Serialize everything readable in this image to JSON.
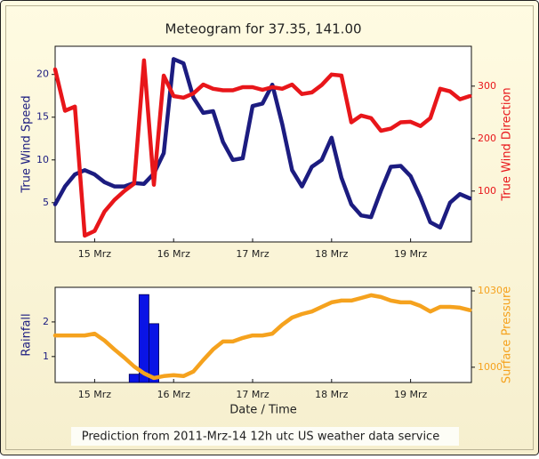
{
  "footer": "Prediction from 2011-Mrz-14 12h utc US weather data service",
  "chart_data": [
    {
      "type": "line",
      "title": "Meteogram for 37.35, 141.00",
      "ylabel": "True Wind Speed",
      "y2label": "True Wind Direction",
      "x": [
        14.5,
        14.625,
        14.75,
        14.875,
        15,
        15.125,
        15.25,
        15.375,
        15.5,
        15.625,
        15.75,
        15.875,
        16,
        16.125,
        16.25,
        16.375,
        16.5,
        16.625,
        16.75,
        16.875,
        17,
        17.125,
        17.25,
        17.375,
        17.5,
        17.625,
        17.75,
        17.875,
        18,
        18.125,
        18.25,
        18.375,
        18.5,
        18.625,
        18.75,
        18.875,
        19,
        19.125,
        19.25,
        19.375,
        19.5,
        19.625,
        19.75
      ],
      "xlim": [
        14.5,
        19.77
      ],
      "xticks": [
        {
          "value": 15,
          "label": "15 Mrz"
        },
        {
          "value": 16,
          "label": "16 Mrz"
        },
        {
          "value": 17,
          "label": "17 Mrz"
        },
        {
          "value": 18,
          "label": "18 Mrz"
        },
        {
          "value": 19,
          "label": "19 Mrz"
        }
      ],
      "ylim": [
        0.4,
        23.3
      ],
      "yticks": [
        5,
        10,
        15,
        20
      ],
      "y2lim": [
        3,
        376
      ],
      "y2ticks": [
        100,
        200,
        300
      ],
      "series": [
        {
          "name": "True Wind Speed",
          "type": "line",
          "color": "#1c1c80",
          "values": [
            4.8,
            6.9,
            8.3,
            8.8,
            8.3,
            7.4,
            6.9,
            6.9,
            7.3,
            7.2,
            8.4,
            10.8,
            21.8,
            21.3,
            17.3,
            15.5,
            15.7,
            12.1,
            10.0,
            10.2,
            16.3,
            16.6,
            18.8,
            14.2,
            8.8,
            6.9,
            9.2,
            10.0,
            12.6,
            7.9,
            4.8,
            3.5,
            3.3,
            6.4,
            9.2,
            9.3,
            8.1,
            5.6,
            2.7,
            2.1,
            5.0,
            6.0,
            5.5
          ]
        },
        {
          "name": "True Wind Direction",
          "type": "line",
          "axis": "y2",
          "color": "#e8161a",
          "values": [
            332,
            253,
            261,
            15,
            24,
            61,
            83,
            100,
            114,
            349,
            112,
            320,
            281,
            278,
            286,
            303,
            295,
            292,
            292,
            298,
            298,
            293,
            298,
            295,
            303,
            285,
            288,
            302,
            322,
            320,
            231,
            244,
            239,
            215,
            219,
            231,
            232,
            224,
            239,
            295,
            290,
            275,
            281
          ]
        }
      ]
    },
    {
      "type": "bar",
      "xlabel": "Date / Time",
      "ylabel": "Rainfall",
      "y2label": "Surface Pressure",
      "x": [
        14.5,
        14.625,
        14.75,
        14.875,
        15,
        15.125,
        15.25,
        15.375,
        15.5,
        15.625,
        15.75,
        15.875,
        16,
        16.125,
        16.25,
        16.375,
        16.5,
        16.625,
        16.75,
        16.875,
        17,
        17.125,
        17.25,
        17.375,
        17.5,
        17.625,
        17.75,
        17.875,
        18,
        18.125,
        18.25,
        18.375,
        18.5,
        18.625,
        18.75,
        18.875,
        19,
        19.125,
        19.25,
        19.375,
        19.5,
        19.625,
        19.75
      ],
      "xlim": [
        14.5,
        19.77
      ],
      "xticks": [
        {
          "value": 15,
          "label": "15 Mrz"
        },
        {
          "value": 16,
          "label": "16 Mrz"
        },
        {
          "value": 17,
          "label": "17 Mrz"
        },
        {
          "value": 18,
          "label": "18 Mrz"
        },
        {
          "value": 19,
          "label": "19 Mrz"
        }
      ],
      "ylim": [
        0.25,
        3.0
      ],
      "yticks": [
        1,
        2
      ],
      "y2lim": [
        994,
        1031.4
      ],
      "y2ticks": [
        1000,
        1030
      ],
      "series": [
        {
          "name": "Rainfall",
          "type": "bar",
          "color": "#0a14e6",
          "x": [
            15.5,
            15.625,
            15.75
          ],
          "values": [
            0.49,
            2.79,
            1.95
          ]
        },
        {
          "name": "Surface Pressure",
          "type": "line",
          "axis": "y2",
          "color": "#f5a21e",
          "values": [
            1012.5,
            1012.5,
            1012.5,
            1012.5,
            1013.2,
            1010.5,
            1007,
            1003.8,
            1000.3,
            997.6,
            995.8,
            996.5,
            996.9,
            996.5,
            998.3,
            1002.8,
            1007,
            1010.1,
            1010.1,
            1011.5,
            1012.5,
            1012.5,
            1013.2,
            1016.7,
            1019.5,
            1020.9,
            1021.9,
            1023.7,
            1025.5,
            1026.2,
            1026.2,
            1027.2,
            1028.3,
            1027.6,
            1026.2,
            1025.5,
            1025.5,
            1024.1,
            1021.9,
            1023.7,
            1023.7,
            1023.4,
            1022.4
          ]
        }
      ]
    }
  ]
}
